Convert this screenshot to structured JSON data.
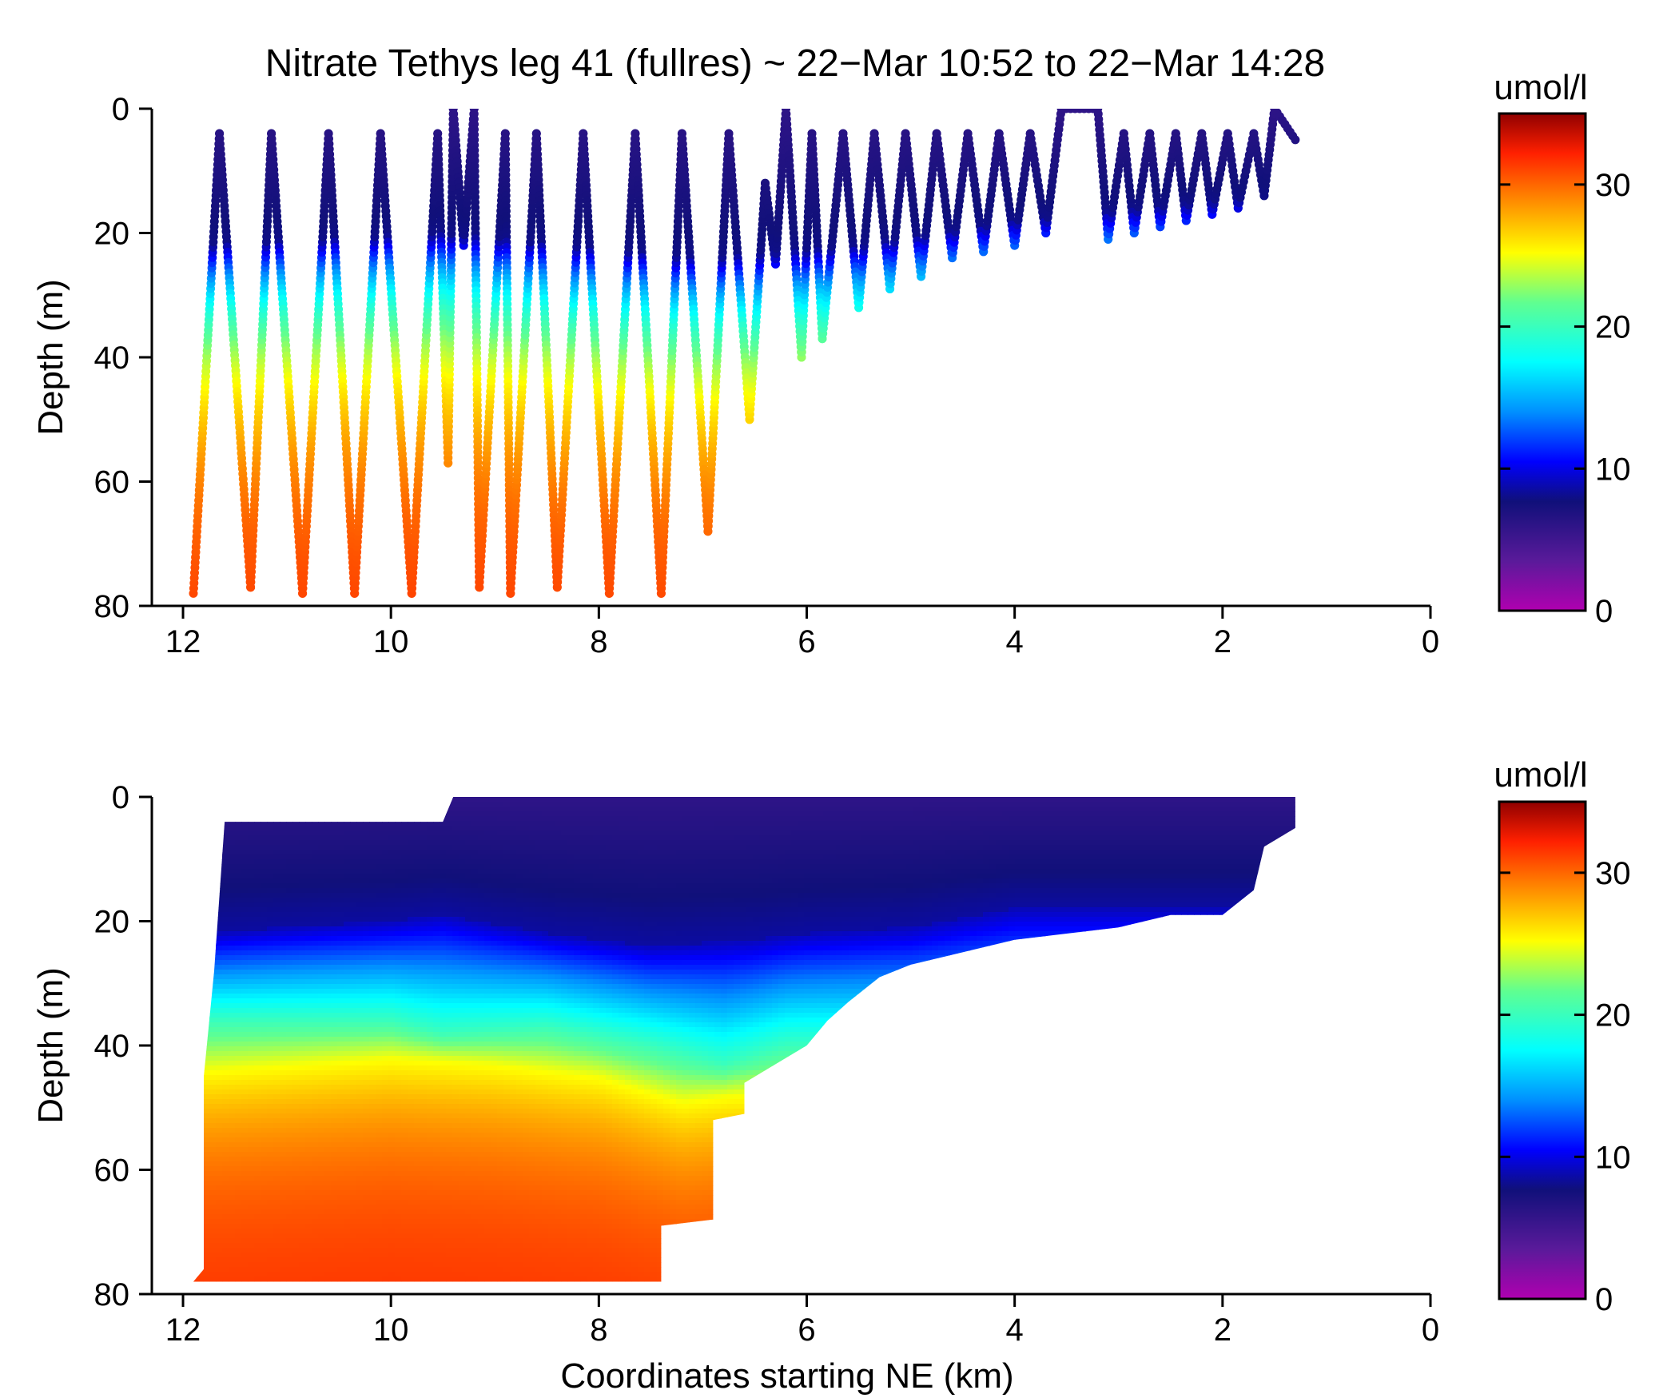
{
  "chart_data": [
    {
      "type": "scatter",
      "title": "Nitrate Tethys leg 41 (fullres) ~ 22−Mar 10:52 to 22−Mar 14:28",
      "xlabel": "",
      "ylabel": "Depth (m)",
      "xlim": [
        12.3,
        0
      ],
      "ylim": [
        0,
        80
      ],
      "y_reversed": true,
      "x_reversed": true,
      "x_ticks": [
        "12",
        "10",
        "8",
        "6",
        "4",
        "2",
        "0"
      ],
      "y_ticks": [
        "0",
        "20",
        "40",
        "60",
        "80"
      ],
      "colorbar": {
        "label": "umol/l",
        "min": 0,
        "max": 35,
        "ticks": [
          "0",
          "10",
          "20",
          "30"
        ]
      },
      "yo_profiles": {
        "description_units": "x in km, y depth in m",
        "segments": [
          [
            11.9,
            78
          ],
          [
            11.65,
            4
          ],
          [
            11.35,
            77
          ],
          [
            11.15,
            4
          ],
          [
            10.85,
            78
          ],
          [
            10.6,
            4
          ],
          [
            10.35,
            78
          ],
          [
            10.1,
            4
          ],
          [
            9.8,
            78
          ],
          [
            9.55,
            4
          ],
          [
            9.45,
            57
          ],
          [
            9.4,
            0
          ],
          [
            9.3,
            22
          ],
          [
            9.2,
            0
          ],
          [
            9.15,
            77
          ],
          [
            8.9,
            4
          ],
          [
            8.85,
            78
          ],
          [
            8.6,
            4
          ],
          [
            8.4,
            77
          ],
          [
            8.15,
            4
          ],
          [
            7.9,
            78
          ],
          [
            7.65,
            4
          ],
          [
            7.4,
            78
          ],
          [
            7.2,
            4
          ],
          [
            6.95,
            68
          ],
          [
            6.75,
            4
          ],
          [
            6.55,
            50
          ],
          [
            6.4,
            12
          ],
          [
            6.3,
            25
          ],
          [
            6.2,
            0
          ],
          [
            6.05,
            40
          ],
          [
            5.95,
            4
          ],
          [
            5.85,
            37
          ],
          [
            5.65,
            4
          ],
          [
            5.5,
            32
          ],
          [
            5.35,
            4
          ],
          [
            5.2,
            29
          ],
          [
            5.05,
            4
          ],
          [
            4.9,
            27
          ],
          [
            4.75,
            4
          ],
          [
            4.6,
            24
          ],
          [
            4.45,
            4
          ],
          [
            4.3,
            23
          ],
          [
            4.15,
            4
          ],
          [
            4.0,
            22
          ],
          [
            3.85,
            4
          ],
          [
            3.7,
            20
          ],
          [
            3.55,
            0
          ],
          [
            3.2,
            0
          ],
          [
            3.1,
            21
          ],
          [
            2.95,
            4
          ],
          [
            2.85,
            20
          ],
          [
            2.7,
            4
          ],
          [
            2.6,
            19
          ],
          [
            2.45,
            4
          ],
          [
            2.35,
            18
          ],
          [
            2.2,
            4
          ],
          [
            2.1,
            17
          ],
          [
            1.95,
            4
          ],
          [
            1.85,
            16
          ],
          [
            1.7,
            4
          ],
          [
            1.6,
            14
          ],
          [
            1.5,
            0
          ],
          [
            1.3,
            5
          ]
        ]
      },
      "nitracline_depths_m": {
        "by_x": [
          [
            12,
            22
          ],
          [
            9.5,
            20
          ],
          [
            7,
            24
          ],
          [
            5.5,
            22
          ],
          [
            4,
            18
          ],
          [
            1.5,
            14
          ]
        ]
      }
    },
    {
      "type": "heatmap",
      "title": "",
      "xlabel": "Coordinates starting NE (km)",
      "ylabel": "Depth (m)",
      "xlim": [
        12.3,
        0
      ],
      "ylim": [
        0,
        80
      ],
      "y_reversed": true,
      "x_reversed": true,
      "x_ticks": [
        "12",
        "10",
        "8",
        "6",
        "4",
        "2",
        "0"
      ],
      "y_ticks": [
        "0",
        "20",
        "40",
        "60",
        "80"
      ],
      "colorbar": {
        "label": "umol/l",
        "min": 0,
        "max": 35,
        "ticks": [
          "0",
          "10",
          "20",
          "30"
        ]
      },
      "coverage_bottom_depth_m": [
        [
          11.9,
          78
        ],
        [
          11.8,
          76
        ],
        [
          11.8,
          45
        ],
        [
          11.7,
          28
        ],
        [
          11.6,
          4
        ],
        [
          9.5,
          4
        ],
        [
          9.4,
          0
        ],
        [
          1.3,
          0
        ],
        [
          1.3,
          5
        ],
        [
          1.6,
          8
        ],
        [
          1.7,
          15
        ],
        [
          2.0,
          19
        ],
        [
          2.5,
          19
        ],
        [
          3.0,
          21
        ],
        [
          3.5,
          22
        ],
        [
          4.0,
          23
        ],
        [
          4.5,
          25
        ],
        [
          5.0,
          27
        ],
        [
          5.3,
          29
        ],
        [
          5.6,
          33
        ],
        [
          5.8,
          36
        ],
        [
          6.0,
          40
        ],
        [
          6.4,
          44
        ],
        [
          6.6,
          46
        ],
        [
          6.6,
          51
        ],
        [
          6.9,
          52
        ],
        [
          6.9,
          68
        ],
        [
          7.4,
          69
        ],
        [
          7.4,
          78
        ]
      ],
      "nitracline_depths_m": [
        [
          11.8,
          22
        ],
        [
          11,
          21
        ],
        [
          10,
          20
        ],
        [
          9.5,
          19
        ],
        [
          8.5,
          22
        ],
        [
          7.5,
          24
        ],
        [
          6.5,
          23
        ],
        [
          6,
          22
        ],
        [
          5,
          21
        ],
        [
          4,
          18
        ]
      ],
      "isoline_20_depths_m": [
        [
          11.8,
          36
        ],
        [
          10,
          36
        ],
        [
          9.5,
          38
        ],
        [
          8.5,
          37
        ],
        [
          7.5,
          40
        ],
        [
          6.8,
          43
        ],
        [
          6.2,
          40
        ]
      ],
      "isoline_25_depths_m": [
        [
          11.8,
          44
        ],
        [
          10,
          42
        ],
        [
          9.0,
          43
        ],
        [
          8.0,
          45
        ],
        [
          7.2,
          49
        ],
        [
          6.7,
          48
        ]
      ]
    }
  ],
  "colors": {
    "colormap": [
      "#b000b0",
      "#5a1a9a",
      "#10107a",
      "#0000ff",
      "#0090ff",
      "#00ffff",
      "#60ff90",
      "#ffff00",
      "#ff9000",
      "#ff2000",
      "#900000"
    ]
  }
}
